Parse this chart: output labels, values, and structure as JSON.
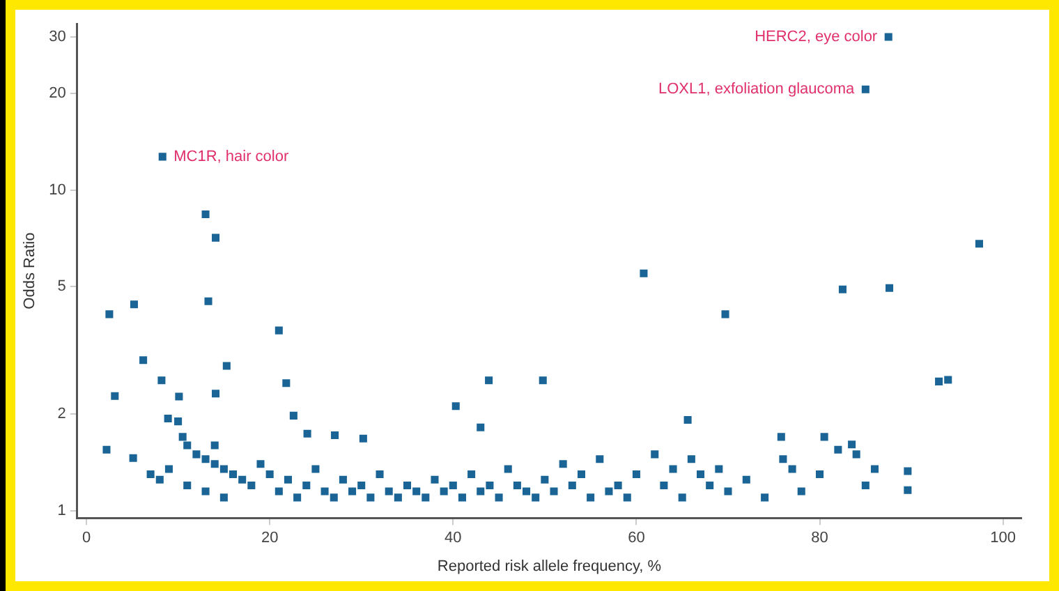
{
  "chart_data": {
    "type": "scatter",
    "xlabel": "Reported risk allele frequency, %",
    "ylabel": "Odds Ratio",
    "log": "y",
    "grid": false,
    "legend": false,
    "marker": "square",
    "xlim": [
      -1,
      102
    ],
    "xticks": [
      0,
      20,
      40,
      60,
      80,
      100
    ],
    "ylim": [
      0.95,
      33
    ],
    "yticks": [
      1,
      2,
      5,
      10,
      20,
      30
    ],
    "annotations": [
      {
        "text": "HERC2, eye color",
        "x": 87.5,
        "y": 30
      },
      {
        "text": "LOXL1, exfoliation glaucoma",
        "x": 85,
        "y": 20.6
      },
      {
        "text": "MC1R, hair color",
        "x": 8.3,
        "y": 12.7
      }
    ],
    "series": [
      {
        "color": "#1a6496",
        "x": [
          87.5,
          85,
          8.3,
          13,
          14.1,
          13.3,
          2.5,
          5.2,
          21,
          60.8,
          69.7,
          82.5,
          87.6,
          97.4,
          6.2,
          15.3,
          8.2,
          10.1,
          3.1,
          14.1,
          21.8,
          43.9,
          49.8,
          93,
          94,
          40.3,
          22.6,
          8.9,
          24.1,
          27.1,
          30.2,
          43,
          65.6,
          2.2,
          5.1,
          75.8,
          80.5,
          83.5,
          89.6,
          89.6,
          10,
          10.5,
          11,
          12,
          13,
          14,
          15,
          16,
          17,
          9,
          11,
          13,
          15,
          18,
          20,
          21,
          22,
          23,
          24,
          25,
          26,
          27,
          28,
          29,
          30,
          31,
          32,
          33,
          34,
          35,
          36,
          37,
          38,
          39,
          40,
          41,
          42,
          43,
          44,
          45,
          46,
          47,
          48,
          49,
          50,
          51,
          52,
          53,
          54,
          55,
          56,
          57,
          58,
          59,
          60,
          62,
          63,
          64,
          65,
          66,
          67,
          68,
          69,
          70,
          72,
          74,
          76,
          77,
          78,
          80,
          82,
          84,
          85,
          86,
          7,
          8,
          19,
          14
        ],
        "values": [
          30,
          20.6,
          12.7,
          8.4,
          7.1,
          4.5,
          4.1,
          4.4,
          3.65,
          5.5,
          4.1,
          4.9,
          4.95,
          6.8,
          2.95,
          2.83,
          2.55,
          2.27,
          2.28,
          2.32,
          2.5,
          2.55,
          2.55,
          2.53,
          2.56,
          2.12,
          1.98,
          1.94,
          1.74,
          1.72,
          1.68,
          1.82,
          1.92,
          1.55,
          1.46,
          1.7,
          1.7,
          1.61,
          1.33,
          1.16,
          1.9,
          1.7,
          1.6,
          1.5,
          1.45,
          1.4,
          1.35,
          1.3,
          1.25,
          1.35,
          1.2,
          1.15,
          1.1,
          1.2,
          1.3,
          1.15,
          1.25,
          1.1,
          1.2,
          1.35,
          1.15,
          1.1,
          1.25,
          1.15,
          1.2,
          1.1,
          1.3,
          1.15,
          1.1,
          1.2,
          1.15,
          1.1,
          1.25,
          1.15,
          1.2,
          1.1,
          1.3,
          1.15,
          1.2,
          1.1,
          1.35,
          1.2,
          1.15,
          1.1,
          1.25,
          1.15,
          1.4,
          1.2,
          1.3,
          1.1,
          1.45,
          1.15,
          1.2,
          1.1,
          1.3,
          1.5,
          1.2,
          1.35,
          1.1,
          1.45,
          1.3,
          1.2,
          1.35,
          1.15,
          1.25,
          1.1,
          1.45,
          1.35,
          1.15,
          1.3,
          1.55,
          1.5,
          1.2,
          1.35,
          1.3,
          1.25,
          1.4,
          1.6
        ]
      }
    ]
  }
}
